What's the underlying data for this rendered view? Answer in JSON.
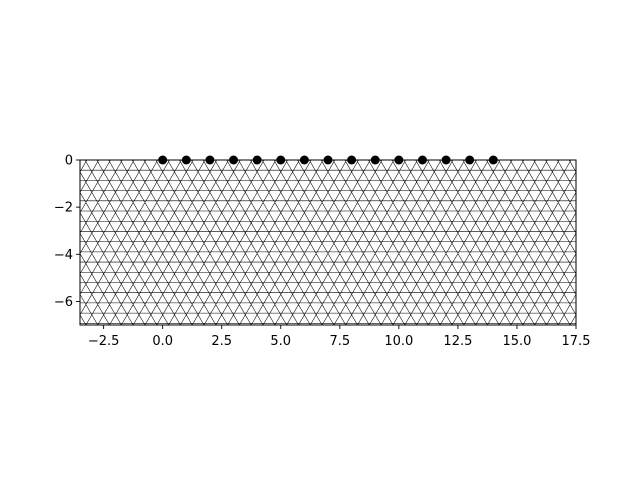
{
  "colors": {
    "background": "#ffffff",
    "mesh_edge": "#000000",
    "electrode": "#000000",
    "axes": "#000000"
  },
  "chart_data": {
    "type": "mesh",
    "title": "",
    "xlabel": "",
    "ylabel": "",
    "xlim": [
      -3.5,
      17.5
    ],
    "ylim": [
      -7,
      0
    ],
    "xticks": [
      -2.5,
      0.0,
      2.5,
      5.0,
      7.5,
      10.0,
      12.5,
      15.0,
      17.5
    ],
    "xtick_labels": [
      "−2.5",
      "0.0",
      "2.5",
      "5.0",
      "7.5",
      "10.0",
      "12.5",
      "15.0",
      "17.5"
    ],
    "yticks": [
      0,
      -2,
      -4,
      -6
    ],
    "ytick_labels": [
      "0",
      "−2",
      "−4",
      "−6"
    ],
    "mesh": {
      "element": "triangle",
      "nominal_spacing": 0.5
    },
    "electrodes": {
      "x": [
        0,
        1,
        2,
        3,
        4,
        5,
        6,
        7,
        8,
        9,
        10,
        11,
        12,
        13,
        14
      ],
      "y": [
        0,
        0,
        0,
        0,
        0,
        0,
        0,
        0,
        0,
        0,
        0,
        0,
        0,
        0,
        0
      ]
    }
  }
}
